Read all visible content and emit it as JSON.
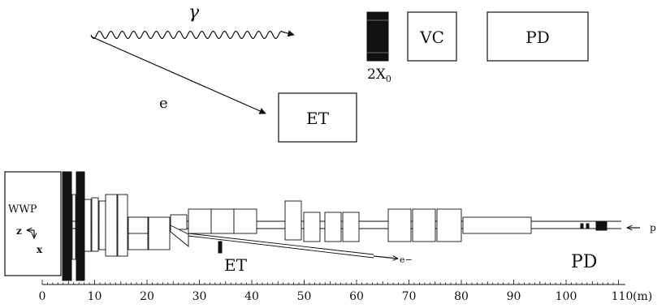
{
  "schematic": {
    "photon_label": "γ",
    "electron_label": "e",
    "converter_label": "2X",
    "converter_subscript": "0",
    "vc_label": "VC",
    "pd_label": "PD",
    "et_label": "ET"
  },
  "beamline": {
    "magnet_label": "WWP",
    "axis_z_label": "z",
    "axis_x_label": "x",
    "et_label": "ET",
    "pd_label": "PD",
    "electron_label": "e−",
    "proton_label": "p",
    "distance_ticks": [
      "0",
      "10",
      "20",
      "30",
      "40",
      "50",
      "60",
      "70",
      "80",
      "90",
      "100"
    ],
    "distance_last_label": "110",
    "distance_unit": "(m)"
  }
}
